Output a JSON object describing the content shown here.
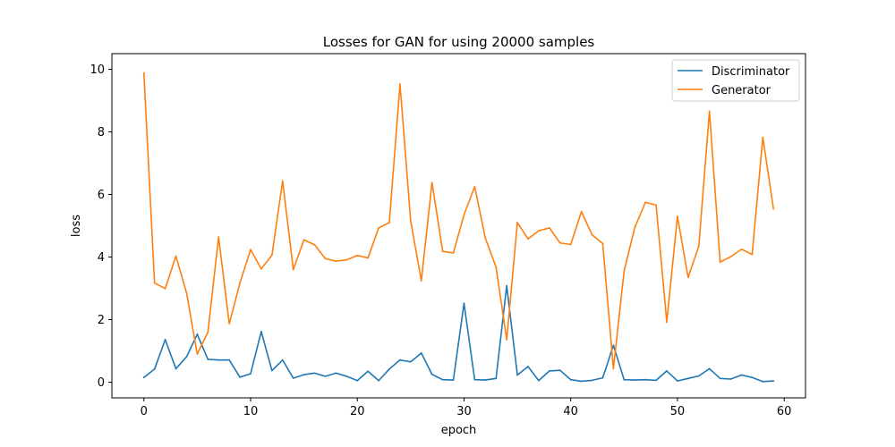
{
  "chart_data": {
    "type": "line",
    "title": "Losses for GAN for using 20000 samples",
    "xlabel": "epoch",
    "ylabel": "loss",
    "xlim": [
      -3,
      62
    ],
    "ylim": [
      -0.5,
      10.5
    ],
    "xticks": [
      0,
      10,
      20,
      30,
      40,
      50,
      60
    ],
    "yticks": [
      0,
      2,
      4,
      6,
      8,
      10
    ],
    "grid": false,
    "legend_position": "top-right",
    "x": [
      0,
      1,
      2,
      3,
      4,
      5,
      6,
      7,
      8,
      9,
      10,
      11,
      12,
      13,
      14,
      15,
      16,
      17,
      18,
      19,
      20,
      21,
      22,
      23,
      24,
      25,
      26,
      27,
      28,
      29,
      30,
      31,
      32,
      33,
      34,
      35,
      36,
      37,
      38,
      39,
      40,
      41,
      42,
      43,
      44,
      45,
      46,
      47,
      48,
      49,
      50,
      51,
      52,
      53,
      54,
      55,
      56,
      57,
      58,
      59
    ],
    "series": [
      {
        "name": "Discriminator",
        "color": "#1f77b4",
        "values": [
          0.15,
          0.42,
          1.36,
          0.43,
          0.81,
          1.53,
          0.73,
          0.71,
          0.71,
          0.16,
          0.27,
          1.62,
          0.37,
          0.71,
          0.13,
          0.24,
          0.29,
          0.19,
          0.29,
          0.19,
          0.05,
          0.35,
          0.05,
          0.42,
          0.71,
          0.65,
          0.93,
          0.25,
          0.08,
          0.07,
          2.52,
          0.08,
          0.07,
          0.12,
          3.08,
          0.23,
          0.5,
          0.05,
          0.36,
          0.38,
          0.08,
          0.03,
          0.06,
          0.14,
          1.18,
          0.08,
          0.07,
          0.08,
          0.06,
          0.36,
          0.04,
          0.12,
          0.2,
          0.43,
          0.12,
          0.1,
          0.23,
          0.15,
          0.02,
          0.04
        ]
      },
      {
        "name": "Generator",
        "color": "#ff7f0e",
        "values": [
          9.88,
          3.17,
          2.99,
          4.03,
          2.85,
          0.9,
          1.6,
          4.64,
          1.87,
          3.17,
          4.24,
          3.62,
          4.06,
          6.43,
          3.6,
          4.55,
          4.39,
          3.95,
          3.87,
          3.91,
          4.05,
          3.97,
          4.93,
          5.1,
          9.53,
          5.15,
          3.24,
          6.38,
          4.18,
          4.13,
          5.35,
          6.25,
          4.6,
          3.68,
          1.36,
          5.1,
          4.58,
          4.84,
          4.93,
          4.45,
          4.4,
          5.45,
          4.71,
          4.43,
          0.43,
          3.55,
          4.94,
          5.75,
          5.66,
          1.92,
          5.3,
          3.35,
          4.35,
          8.66,
          3.84,
          4.01,
          4.25,
          4.08,
          7.82,
          5.54
        ]
      }
    ]
  }
}
